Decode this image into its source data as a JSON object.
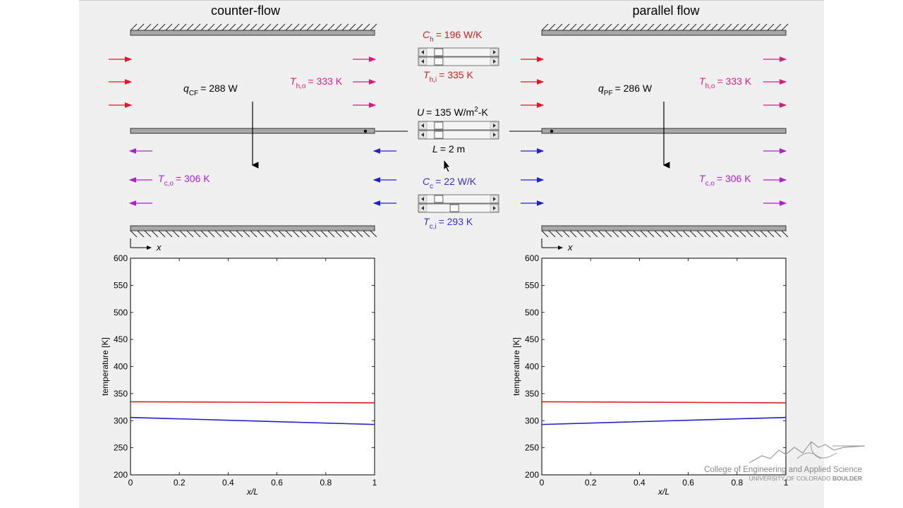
{
  "panels": {
    "counter_flow": {
      "title": "counter-flow"
    },
    "parallel_flow": {
      "title": "parallel flow"
    }
  },
  "controls": {
    "Ch": {
      "sym": "C",
      "sub": "h",
      "value": "= 196 W/K",
      "slider_fraction": 0.12
    },
    "Thi": {
      "sym": "T",
      "sub": "h,i",
      "value": "= 335 K"
    },
    "U": {
      "sym": "U",
      "value": "= 135 W/m",
      "sup": "2",
      "tail": "-K",
      "slider_fraction": 0.12
    },
    "L": {
      "sym": "L",
      "value": "= 2 m"
    },
    "Cc": {
      "sym": "C",
      "sub": "c",
      "value": "= 22 W/K",
      "slider_fraction": 0.12
    },
    "Tci": {
      "sym": "T",
      "sub": "c,i",
      "value": "= 293 K",
      "slider_fraction": 0.42
    }
  },
  "counter_flow_labels": {
    "q": {
      "sym": "q",
      "sub": "CF",
      "value": "= 288 W"
    },
    "Tho": {
      "sym": "T",
      "sub": "h,o",
      "value": "= 333 K"
    },
    "Tco": {
      "sym": "T",
      "sub": "c,o",
      "value": "= 306 K"
    }
  },
  "parallel_flow_labels": {
    "q": {
      "sym": "q",
      "sub": "PF",
      "value": "= 286 W"
    },
    "Tho": {
      "sym": "T",
      "sub": "h,o",
      "value": "= 333 K"
    },
    "Tco": {
      "sym": "T",
      "sub": "c,o",
      "value": "= 306 K"
    }
  },
  "axis_x_label": "x",
  "colors": {
    "hot": "#e8102a",
    "hot_out": "#e0197a",
    "cold": "#2020cc",
    "cold_out": "#b01fd0",
    "label_hot": "#cc1f1f",
    "label_cold": "#3030cc"
  },
  "chart_data": [
    {
      "type": "line",
      "xlabel": "x/L",
      "ylabel": "temperature [K]",
      "xlim": [
        0,
        1
      ],
      "ylim": [
        200,
        600
      ],
      "xticks": [
        0,
        0.2,
        0.4,
        0.6,
        0.8,
        1
      ],
      "xtick_labels": [
        "0",
        "0.2",
        "0.4",
        "0.6",
        "0.8",
        "1"
      ],
      "yticks": [
        200,
        250,
        300,
        350,
        400,
        450,
        500,
        550,
        600
      ],
      "ytick_labels": [
        "200",
        "250",
        "300",
        "350",
        "400",
        "450",
        "500",
        "550",
        "600"
      ],
      "series": [
        {
          "color": "#dd1f1f",
          "x": [
            0,
            1
          ],
          "y": [
            335,
            333
          ]
        },
        {
          "color": "#1f1fcc",
          "x": [
            0,
            1
          ],
          "y": [
            306,
            293
          ]
        }
      ]
    },
    {
      "type": "line",
      "xlabel": "x/L",
      "ylabel": "temperature [K]",
      "xlim": [
        0,
        1
      ],
      "ylim": [
        200,
        600
      ],
      "xticks": [
        0,
        0.2,
        0.4,
        0.6,
        0.8,
        1
      ],
      "xtick_labels": [
        "0",
        "0.2",
        "0.4",
        "0.6",
        "0.8",
        "1"
      ],
      "yticks": [
        200,
        250,
        300,
        350,
        400,
        450,
        500,
        550,
        600
      ],
      "ytick_labels": [
        "200",
        "250",
        "300",
        "350",
        "400",
        "450",
        "500",
        "550",
        "600"
      ],
      "series": [
        {
          "color": "#dd1f1f",
          "x": [
            0,
            1
          ],
          "y": [
            335,
            333
          ]
        },
        {
          "color": "#1f1fcc",
          "x": [
            0,
            1
          ],
          "y": [
            293,
            306
          ]
        }
      ]
    }
  ],
  "footer": {
    "college": "College of Engineering and Applied Science",
    "university": "UNIVERSITY OF COLORADO ",
    "boulder": "BOULDER"
  }
}
